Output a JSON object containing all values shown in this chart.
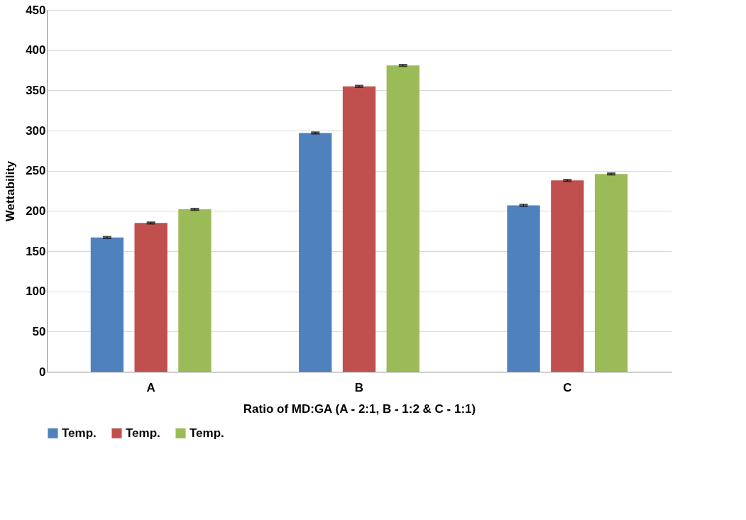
{
  "chart_data": {
    "type": "bar",
    "xlabel": "Ratio of MD:GA  (A - 2:1, B - 1:2 & C - 1:1)",
    "ylabel": "Wettability",
    "categories": [
      "A",
      "B",
      "C"
    ],
    "series": [
      {
        "name": "Temp.",
        "color": "#4f81bd",
        "values": [
          167,
          297,
          207
        ],
        "errors": [
          1,
          1,
          1
        ]
      },
      {
        "name": "Temp.",
        "color": "#c0504d",
        "values": [
          185,
          355,
          238
        ],
        "errors": [
          1,
          1,
          1
        ]
      },
      {
        "name": "Temp.",
        "color": "#9bbb59",
        "values": [
          202,
          381,
          246
        ],
        "errors": [
          1,
          1,
          1
        ]
      }
    ],
    "ylim": [
      0,
      450
    ],
    "yticks": [
      0,
      50,
      100,
      150,
      200,
      250,
      300,
      350,
      400,
      450
    ],
    "grid": "y",
    "legend": "bottom"
  }
}
